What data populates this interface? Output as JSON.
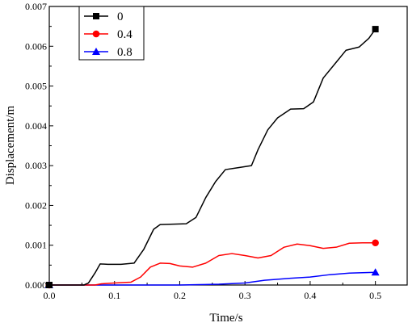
{
  "chart_data": {
    "type": "line",
    "xlabel": "Time/s",
    "ylabel": "Displacement/m",
    "xlim": [
      0.0,
      0.55
    ],
    "ylim": [
      0.0,
      0.007
    ],
    "x_ticks": [
      "0.0",
      "0.1",
      "0.2",
      "0.3",
      "0.4",
      "0.5"
    ],
    "y_ticks": [
      "0.000",
      "0.001",
      "0.002",
      "0.003",
      "0.004",
      "0.005",
      "0.006",
      "0.007"
    ],
    "grid": false,
    "legend_position": "top-left",
    "series": [
      {
        "name": "0",
        "color": "#000000",
        "marker": "square",
        "points": [
          [
            0.0,
            0.0
          ],
          [
            0.053,
            0.0
          ],
          [
            0.06,
            5e-05
          ],
          [
            0.07,
            0.0003
          ],
          [
            0.078,
            0.00053
          ],
          [
            0.09,
            0.00052
          ],
          [
            0.11,
            0.00052
          ],
          [
            0.13,
            0.00055
          ],
          [
            0.145,
            0.0009
          ],
          [
            0.16,
            0.0014
          ],
          [
            0.17,
            0.00152
          ],
          [
            0.19,
            0.00153
          ],
          [
            0.21,
            0.00154
          ],
          [
            0.225,
            0.0017
          ],
          [
            0.24,
            0.0022
          ],
          [
            0.255,
            0.0026
          ],
          [
            0.27,
            0.0029
          ],
          [
            0.29,
            0.00295
          ],
          [
            0.31,
            0.003
          ],
          [
            0.32,
            0.0034
          ],
          [
            0.335,
            0.0039
          ],
          [
            0.35,
            0.0042
          ],
          [
            0.37,
            0.00442
          ],
          [
            0.39,
            0.00443
          ],
          [
            0.405,
            0.0046
          ],
          [
            0.42,
            0.0052
          ],
          [
            0.44,
            0.0056
          ],
          [
            0.455,
            0.0059
          ],
          [
            0.475,
            0.00598
          ],
          [
            0.49,
            0.0062
          ],
          [
            0.5,
            0.00643
          ]
        ]
      },
      {
        "name": "0.4",
        "color": "#ff0000",
        "marker": "circle",
        "points": [
          [
            0.0,
            0.0
          ],
          [
            0.07,
            0.0
          ],
          [
            0.08,
            3e-05
          ],
          [
            0.1,
            5e-05
          ],
          [
            0.125,
            7e-05
          ],
          [
            0.14,
            0.0002
          ],
          [
            0.155,
            0.00045
          ],
          [
            0.17,
            0.00055
          ],
          [
            0.185,
            0.00054
          ],
          [
            0.2,
            0.00048
          ],
          [
            0.22,
            0.00045
          ],
          [
            0.24,
            0.00055
          ],
          [
            0.26,
            0.00074
          ],
          [
            0.28,
            0.00079
          ],
          [
            0.3,
            0.00074
          ],
          [
            0.32,
            0.00068
          ],
          [
            0.34,
            0.00074
          ],
          [
            0.36,
            0.00095
          ],
          [
            0.38,
            0.00103
          ],
          [
            0.4,
            0.00099
          ],
          [
            0.42,
            0.00092
          ],
          [
            0.44,
            0.00095
          ],
          [
            0.46,
            0.00105
          ],
          [
            0.48,
            0.00106
          ],
          [
            0.5,
            0.00106
          ]
        ]
      },
      {
        "name": "0.8",
        "color": "#0000ff",
        "marker": "triangle",
        "points": [
          [
            0.0,
            0.0
          ],
          [
            0.1,
            0.0
          ],
          [
            0.2,
            0.0
          ],
          [
            0.23,
            1e-05
          ],
          [
            0.26,
            2e-05
          ],
          [
            0.3,
            5e-05
          ],
          [
            0.33,
            0.00012
          ],
          [
            0.37,
            0.00017
          ],
          [
            0.4,
            0.0002
          ],
          [
            0.43,
            0.00026
          ],
          [
            0.46,
            0.0003
          ],
          [
            0.48,
            0.00031
          ],
          [
            0.5,
            0.00032
          ]
        ]
      }
    ]
  }
}
